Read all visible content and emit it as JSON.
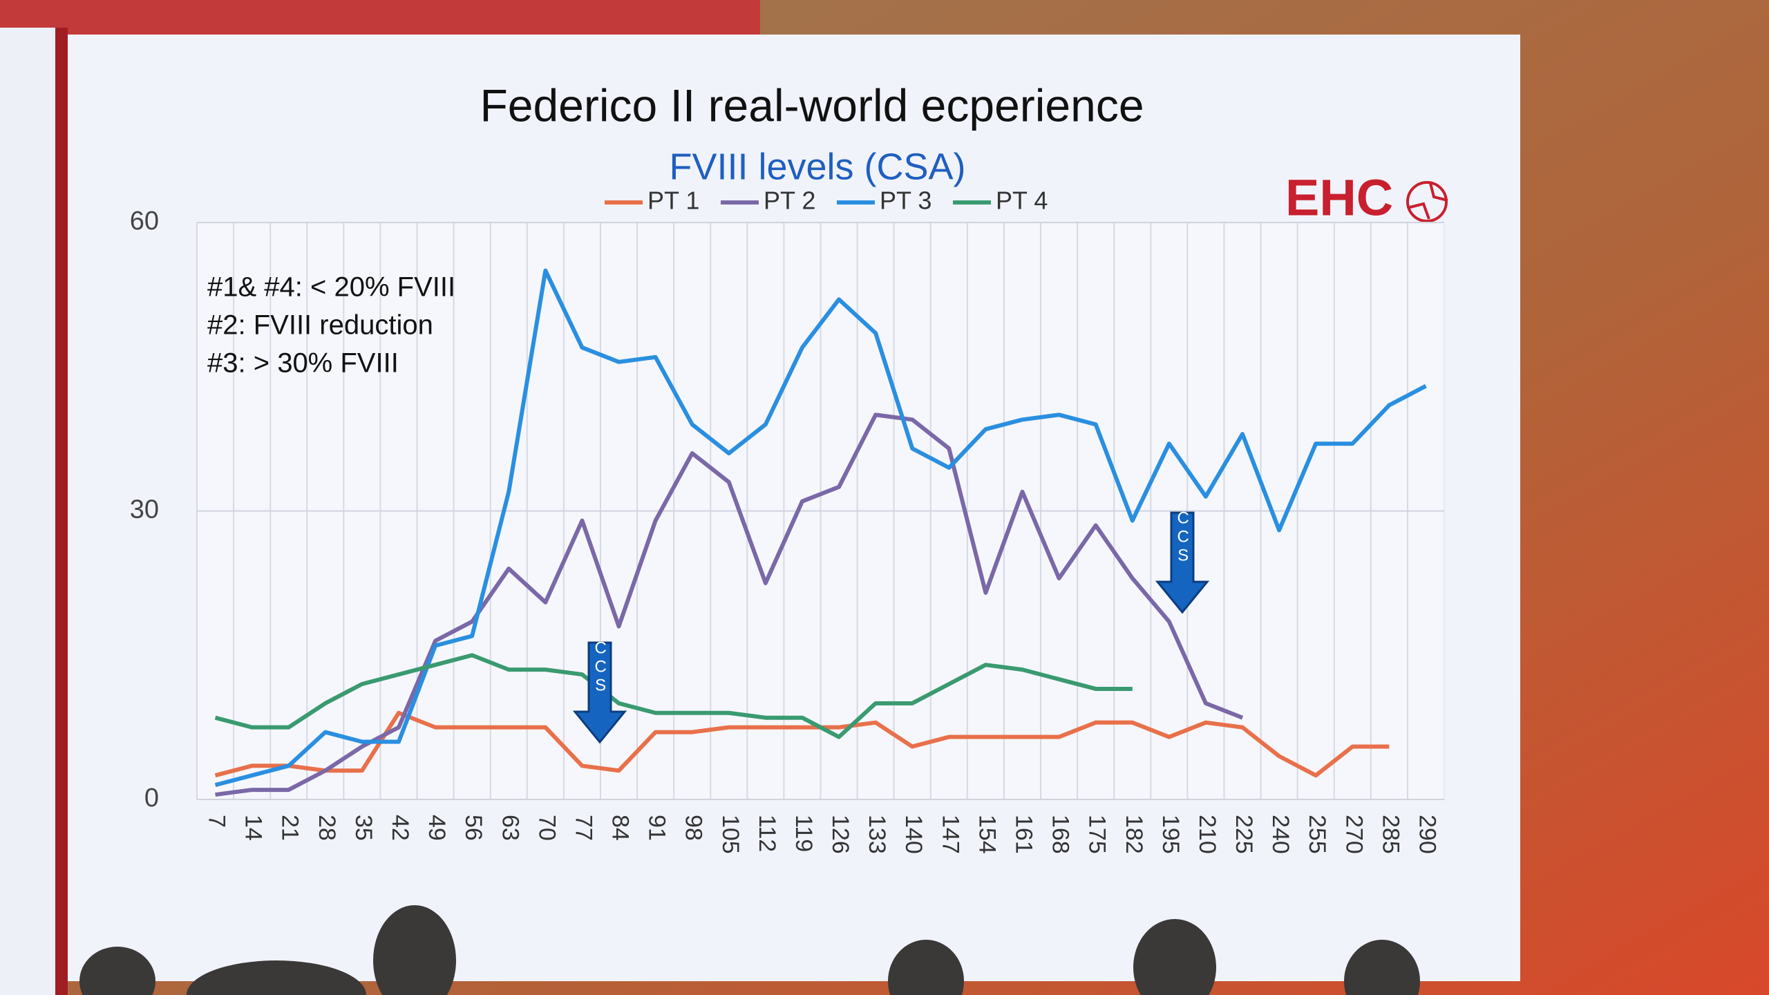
{
  "chart_data": {
    "type": "line",
    "title": "Federico II real-world ecperience",
    "subtitle": "FVIII levels (CSA)",
    "logo": "EHC",
    "annotations": [
      "#1& #4: < 20% FVIII",
      "#2: FVIII reduction",
      "#3: > 30% FVIII"
    ],
    "arrow_labels": [
      "CCS",
      "CCS"
    ],
    "categories": [
      "7",
      "14",
      "21",
      "28",
      "35",
      "42",
      "49",
      "56",
      "63",
      "70",
      "77",
      "84",
      "91",
      "98",
      "105",
      "112",
      "119",
      "126",
      "133",
      "140",
      "147",
      "154",
      "161",
      "168",
      "175",
      "182",
      "195",
      "210",
      "225",
      "240",
      "255",
      "270",
      "285",
      "290"
    ],
    "series": [
      {
        "name": "PT 1",
        "color": "#e8704a",
        "values": [
          2.5,
          3.5,
          3.5,
          3,
          3,
          9,
          7.5,
          7.5,
          7.5,
          7.5,
          3.5,
          3,
          7,
          7,
          7.5,
          7.5,
          7.5,
          7.5,
          8,
          5.5,
          6.5,
          6.5,
          6.5,
          6.5,
          8,
          8,
          6.5,
          8,
          7.5,
          4.5,
          2.5,
          5.5,
          5.5,
          null
        ]
      },
      {
        "name": "PT 2",
        "color": "#7a68a8",
        "values": [
          0.5,
          1,
          1,
          3,
          5.5,
          7.5,
          16.5,
          18.5,
          24,
          20.5,
          29,
          18,
          29,
          36,
          33,
          22.5,
          31,
          32.5,
          40,
          39.5,
          36.5,
          21.5,
          32,
          23,
          28.5,
          23,
          18.5,
          10,
          8.5,
          null,
          null,
          null,
          null,
          null
        ]
      },
      {
        "name": "PT 3",
        "color": "#2a8fe0",
        "values": [
          1.5,
          2.5,
          3.5,
          7,
          6,
          6,
          16,
          17,
          32,
          55,
          47,
          45.5,
          46,
          39,
          36,
          39,
          47,
          52,
          48.5,
          36.5,
          34.5,
          38.5,
          39.5,
          40,
          39,
          29,
          37,
          31.5,
          38,
          28,
          37,
          37,
          41,
          43
        ]
      },
      {
        "name": "PT 4",
        "color": "#3a9a70",
        "values": [
          8.5,
          7.5,
          7.5,
          10,
          12,
          13,
          14,
          15,
          13.5,
          13.5,
          13,
          10,
          9,
          9,
          9,
          8.5,
          8.5,
          6.5,
          10,
          10,
          12,
          14,
          13.5,
          12.5,
          11.5,
          11.5,
          null,
          null,
          null,
          null,
          null,
          null,
          null,
          null
        ]
      }
    ],
    "ylim": [
      0,
      60
    ],
    "yticks": [
      0,
      30,
      60
    ],
    "grid": true
  }
}
